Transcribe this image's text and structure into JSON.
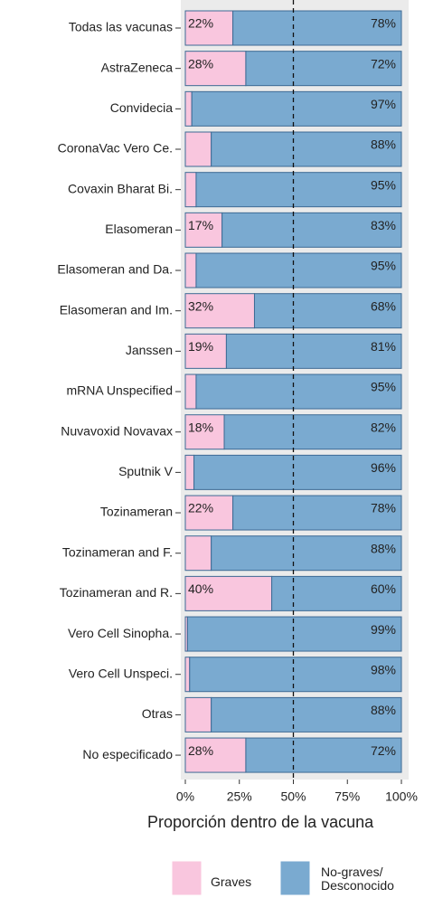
{
  "chart_data": {
    "type": "stacked_bar_horizontal",
    "categories": [
      "Todas las vacunas",
      "AstraZeneca",
      "Convidecia",
      "CoronaVac Vero Ce.",
      "Covaxin Bharat Bi.",
      "Elasomeran",
      "Elasomeran and Da.",
      "Elasomeran and Im.",
      "Janssen",
      "mRNA Unspecified",
      "Nuvavoxid Novavax",
      "Sputnik V",
      "Tozinameran",
      "Tozinameran and F.",
      "Tozinameran and R.",
      "Vero Cell Sinopha.",
      "Vero Cell Unspeci.",
      "Otras",
      "No especificado"
    ],
    "series": [
      {
        "name": "Graves",
        "color": "#f9c6de",
        "values": [
          22,
          28,
          3,
          12,
          5,
          17,
          5,
          32,
          19,
          5,
          18,
          4,
          22,
          12,
          40,
          1,
          2,
          12,
          28
        ],
        "value_labels": [
          "22%",
          "28%",
          "3%",
          "12%",
          "5%",
          "17%",
          "5%",
          "32%",
          "19%",
          "5%",
          "18%",
          "4%",
          "22%",
          "12%",
          "40%",
          "1%",
          "2%",
          "12%",
          "28%"
        ]
      },
      {
        "name": "No-graves/ Desconocido",
        "color": "#7aaad0",
        "values": [
          78,
          72,
          97,
          88,
          95,
          83,
          95,
          68,
          81,
          95,
          82,
          96,
          78,
          88,
          60,
          99,
          98,
          88,
          72
        ],
        "value_labels": [
          "78%",
          "72%",
          "97%",
          "88%",
          "95%",
          "83%",
          "95%",
          "68%",
          "81%",
          "95%",
          "82%",
          "96%",
          "78%",
          "88%",
          "60%",
          "99%",
          "98%",
          "88%",
          "72%"
        ]
      }
    ],
    "xlabel": "Proporción dentro de la vacuna",
    "xlim": [
      0,
      100
    ],
    "xticks": [
      {
        "value": 0,
        "label": "0%"
      },
      {
        "value": 25,
        "label": "25%"
      },
      {
        "value": 50,
        "label": "50%"
      },
      {
        "value": 75,
        "label": "75%"
      },
      {
        "value": 100,
        "label": "100%"
      }
    ],
    "vline": 50,
    "legend": "bottom"
  }
}
